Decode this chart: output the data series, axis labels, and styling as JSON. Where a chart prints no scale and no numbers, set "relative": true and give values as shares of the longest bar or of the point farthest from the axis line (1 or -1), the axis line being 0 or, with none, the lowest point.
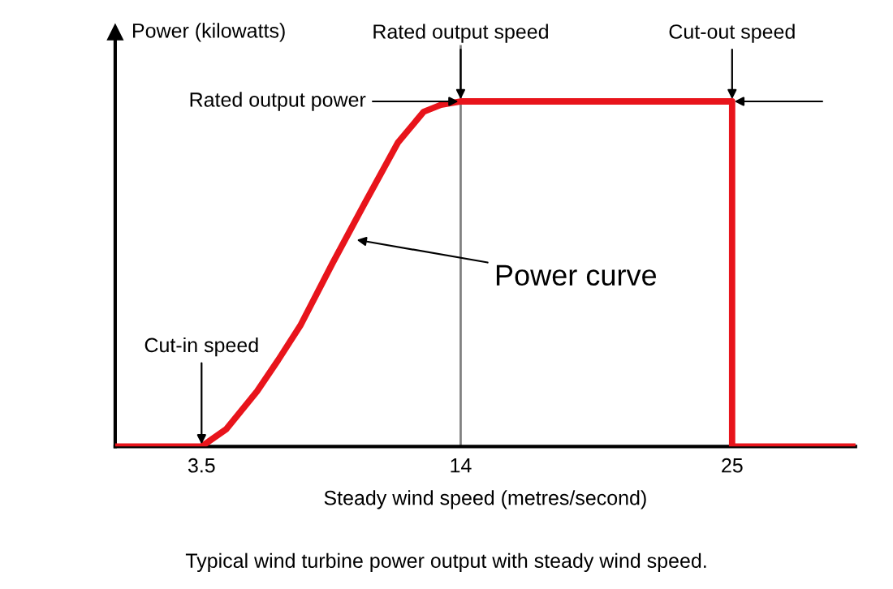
{
  "chart_data": {
    "type": "line",
    "relative": true,
    "xlabel": "Steady wind speed (metres/second)",
    "ylabel": "Power (kilowatts)",
    "xlim": [
      0,
      30
    ],
    "xticks": [
      3.5,
      14,
      25
    ],
    "tick_labels": "x",
    "grid": false,
    "marker": "none",
    "line_style": "solid",
    "series": [
      {
        "color": "#e8141b",
        "x": [
          0,
          3.5,
          4.5,
          5.75,
          6.6,
          7.5,
          8.8,
          10.15,
          11.45,
          12.5,
          13.2,
          14,
          25,
          25,
          30
        ],
        "values": [
          0,
          0,
          0.05,
          0.16,
          0.25,
          0.35,
          0.53,
          0.71,
          0.88,
          0.97,
          0.99,
          1,
          1,
          0,
          0
        ]
      }
    ],
    "ref_lines": [
      {
        "axis": "x",
        "value": 14,
        "color": "#808080"
      }
    ],
    "annotations": [
      {
        "text": "Cut-in speed",
        "x": 3.5,
        "y": 0
      },
      {
        "text": "Rated output speed",
        "x": 14,
        "y": 1
      },
      {
        "text": "Rated output power",
        "x": 14,
        "y": 1
      },
      {
        "text": "Cut-out speed",
        "x": 25,
        "y": 1
      },
      {
        "text": "Power curve",
        "x": 9.7,
        "y": 0.6
      },
      "Typical wind turbine power output with steady wind speed."
    ]
  }
}
